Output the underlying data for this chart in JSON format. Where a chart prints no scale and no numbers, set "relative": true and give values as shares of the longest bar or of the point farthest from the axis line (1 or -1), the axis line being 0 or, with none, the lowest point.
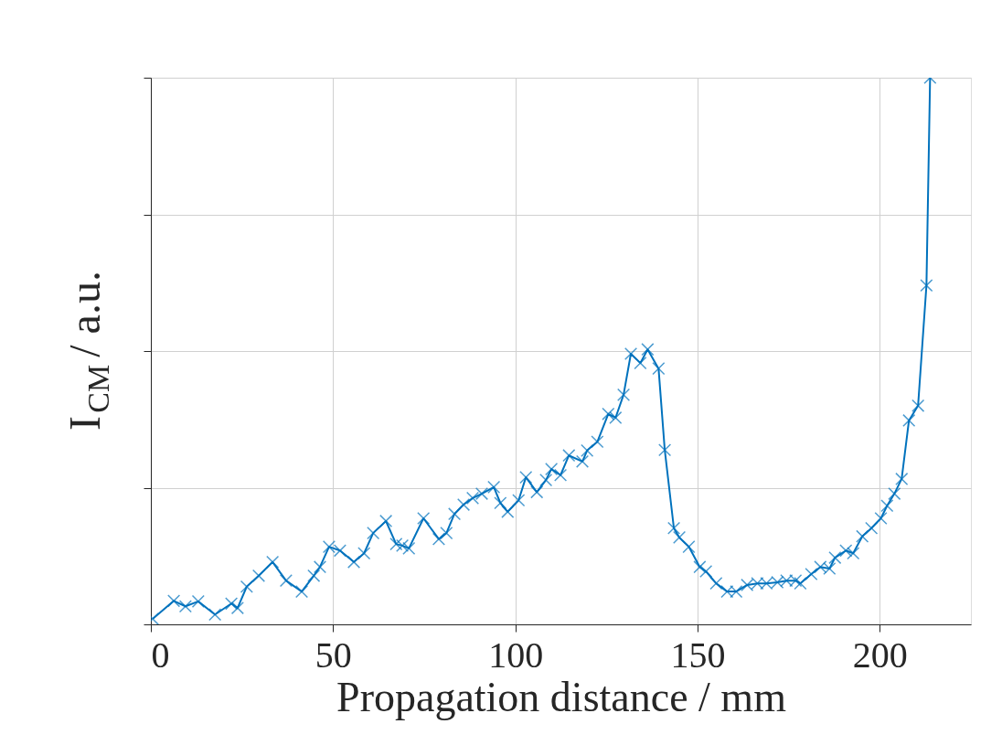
{
  "chart_data": {
    "type": "line",
    "xlabel": "Propagation distance / mm",
    "ylabel": "I$_{CM}$ / a.u.",
    "relative": true,
    "xlim": [
      0,
      225
    ],
    "xticks": [
      0,
      50,
      100,
      150,
      200
    ],
    "grid": true,
    "marker": "cross",
    "line_style": "solid",
    "legend": false,
    "series": [
      {
        "color": "#0072bd",
        "x": [
          0.5,
          6.3,
          9.5,
          13.0,
          17.6,
          22.1,
          23.8,
          26.3,
          29.6,
          33.4,
          37.1,
          41.4,
          44.7,
          46.4,
          48.9,
          51.9,
          55.7,
          58.5,
          61.0,
          64.5,
          67.3,
          69.0,
          70.8,
          74.8,
          79.0,
          81.1,
          83.3,
          85.8,
          88.3,
          90.8,
          94.1,
          95.9,
          97.9,
          100.9,
          102.9,
          105.9,
          108.4,
          109.9,
          112.4,
          114.7,
          118.4,
          119.7,
          122.5,
          125.5,
          127.5,
          129.7,
          131.7,
          134.3,
          136.3,
          139.3,
          141.0,
          143.5,
          145.0,
          147.6,
          150.6,
          152.3,
          155.1,
          158.1,
          160.6,
          163.6,
          166.4,
          168.9,
          171.9,
          174.4,
          176.9,
          178.2,
          181.2,
          183.7,
          186.2,
          187.7,
          190.7,
          192.7,
          195.2,
          197.7,
          200.3,
          202.0,
          204.0,
          206.0,
          208.0,
          210.5,
          212.8,
          213.8
        ],
        "values": [
          0.01,
          0.043,
          0.033,
          0.042,
          0.018,
          0.038,
          0.03,
          0.069,
          0.089,
          0.114,
          0.08,
          0.06,
          0.089,
          0.105,
          0.142,
          0.135,
          0.114,
          0.13,
          0.167,
          0.189,
          0.147,
          0.144,
          0.139,
          0.194,
          0.156,
          0.167,
          0.202,
          0.219,
          0.231,
          0.239,
          0.251,
          0.222,
          0.206,
          0.227,
          0.269,
          0.242,
          0.264,
          0.284,
          0.273,
          0.309,
          0.298,
          0.318,
          0.334,
          0.385,
          0.378,
          0.42,
          0.495,
          0.478,
          0.503,
          0.468,
          0.319,
          0.176,
          0.159,
          0.142,
          0.105,
          0.097,
          0.075,
          0.06,
          0.06,
          0.072,
          0.075,
          0.075,
          0.077,
          0.08,
          0.08,
          0.075,
          0.092,
          0.105,
          0.102,
          0.122,
          0.135,
          0.13,
          0.161,
          0.176,
          0.194,
          0.217,
          0.239,
          0.266,
          0.373,
          0.4,
          0.62,
          1.0
        ]
      }
    ]
  }
}
